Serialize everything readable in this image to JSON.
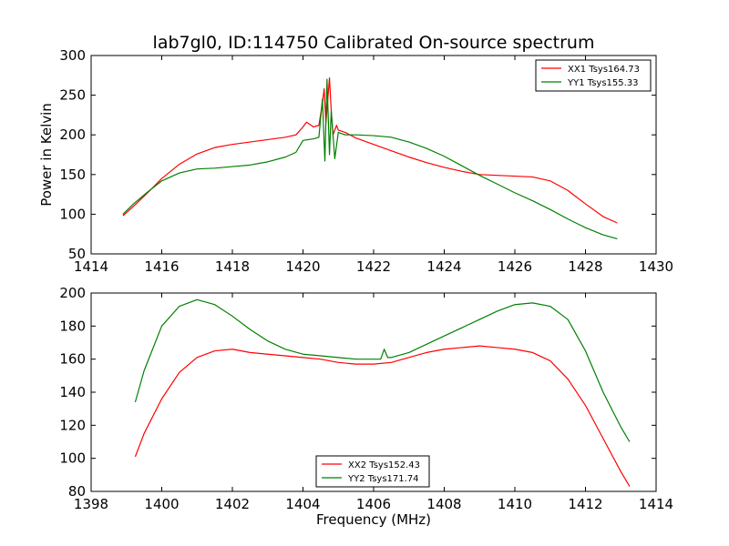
{
  "figure": {
    "title": "lab7gl0, ID:114750 Calibrated On-source spectrum"
  },
  "chart_data": [
    {
      "type": "line",
      "title": "lab7gl0, ID:114750 Calibrated On-source spectrum",
      "xlabel": "",
      "ylabel": "Power in Kelvin",
      "xlim": [
        1414,
        1430
      ],
      "ylim": [
        50,
        300
      ],
      "xticks": [
        1414,
        1416,
        1418,
        1420,
        1422,
        1424,
        1426,
        1428,
        1430
      ],
      "yticks": [
        50,
        100,
        150,
        200,
        250,
        300
      ],
      "grid": false,
      "legend_position": "top-right",
      "series": [
        {
          "name": "XX1 Tsys164.73",
          "color": "#ff0000",
          "x": [
            1414.9,
            1415.2,
            1415.6,
            1416.0,
            1416.5,
            1417.0,
            1417.5,
            1418.0,
            1418.5,
            1419.0,
            1419.5,
            1419.8,
            1420.0,
            1420.1,
            1420.3,
            1420.45,
            1420.55,
            1420.6,
            1420.65,
            1420.75,
            1420.8,
            1420.85,
            1420.95,
            1421.0,
            1421.2,
            1421.5,
            1422.0,
            1422.5,
            1423.0,
            1423.5,
            1424.0,
            1424.5,
            1425.0,
            1425.5,
            1426.0,
            1426.5,
            1427.0,
            1427.5,
            1428.0,
            1428.5,
            1428.9
          ],
          "values": [
            98,
            110,
            127,
            145,
            163,
            176,
            184,
            188,
            191,
            194,
            197,
            200,
            210,
            216,
            210,
            212,
            240,
            258,
            215,
            272,
            230,
            200,
            212,
            206,
            203,
            196,
            188,
            180,
            172,
            165,
            159,
            154,
            150,
            149,
            148,
            147,
            142,
            130,
            113,
            97,
            89
          ]
        },
        {
          "name": "YY1 Tsys155.33",
          "color": "#008000",
          "x": [
            1414.9,
            1415.2,
            1415.6,
            1416.0,
            1416.5,
            1417.0,
            1417.5,
            1418.0,
            1418.5,
            1419.0,
            1419.5,
            1419.8,
            1420.0,
            1420.3,
            1420.45,
            1420.55,
            1420.62,
            1420.68,
            1420.75,
            1420.8,
            1420.9,
            1421.0,
            1421.2,
            1421.5,
            1422.0,
            1422.5,
            1423.0,
            1423.5,
            1424.0,
            1424.5,
            1425.0,
            1425.5,
            1426.0,
            1426.5,
            1427.0,
            1427.5,
            1428.0,
            1428.5,
            1428.9
          ],
          "values": [
            100,
            113,
            128,
            142,
            152,
            157,
            158,
            160,
            162,
            166,
            172,
            178,
            193,
            195,
            197,
            245,
            167,
            270,
            175,
            230,
            170,
            203,
            200,
            200,
            199,
            197,
            191,
            183,
            173,
            161,
            149,
            138,
            127,
            117,
            106,
            94,
            83,
            74,
            69
          ]
        }
      ]
    },
    {
      "type": "line",
      "title": "",
      "xlabel": "Frequency (MHz)",
      "ylabel": "",
      "xlim": [
        1398,
        1414
      ],
      "ylim": [
        80,
        200
      ],
      "xticks": [
        1398,
        1400,
        1402,
        1404,
        1406,
        1408,
        1410,
        1412,
        1414
      ],
      "yticks": [
        80,
        100,
        120,
        140,
        160,
        180,
        200
      ],
      "grid": false,
      "legend_position": "bottom-center",
      "series": [
        {
          "name": "XX2 Tsys152.43",
          "color": "#ff0000",
          "x": [
            1399.25,
            1399.5,
            1400.0,
            1400.5,
            1401.0,
            1401.5,
            1402.0,
            1402.5,
            1403.0,
            1403.5,
            1404.0,
            1404.5,
            1405.0,
            1405.5,
            1406.0,
            1406.5,
            1407.0,
            1407.5,
            1408.0,
            1408.5,
            1409.0,
            1409.5,
            1410.0,
            1410.5,
            1411.0,
            1411.5,
            1412.0,
            1412.5,
            1413.0,
            1413.25
          ],
          "values": [
            101,
            115,
            136,
            152,
            161,
            165,
            166,
            164,
            163,
            162,
            161,
            160,
            158,
            157,
            157,
            158,
            161,
            164,
            166,
            167,
            168,
            167,
            166,
            164,
            159,
            148,
            132,
            112,
            92,
            83
          ]
        },
        {
          "name": "YY2 Tsys171.74",
          "color": "#008000",
          "x": [
            1399.25,
            1399.5,
            1400.0,
            1400.5,
            1401.0,
            1401.5,
            1402.0,
            1402.5,
            1403.0,
            1403.5,
            1404.0,
            1404.5,
            1405.0,
            1405.5,
            1406.0,
            1406.2,
            1406.3,
            1406.4,
            1406.5,
            1407.0,
            1407.5,
            1408.0,
            1408.5,
            1409.0,
            1409.5,
            1410.0,
            1410.5,
            1411.0,
            1411.5,
            1412.0,
            1412.5,
            1413.0,
            1413.25
          ],
          "values": [
            134,
            153,
            180,
            192,
            196,
            193,
            186,
            178,
            171,
            166,
            163,
            162,
            161,
            160,
            160,
            160,
            166,
            161,
            161,
            164,
            169,
            174,
            179,
            184,
            189,
            193,
            194,
            192,
            184,
            165,
            140,
            119,
            110
          ]
        }
      ]
    }
  ]
}
